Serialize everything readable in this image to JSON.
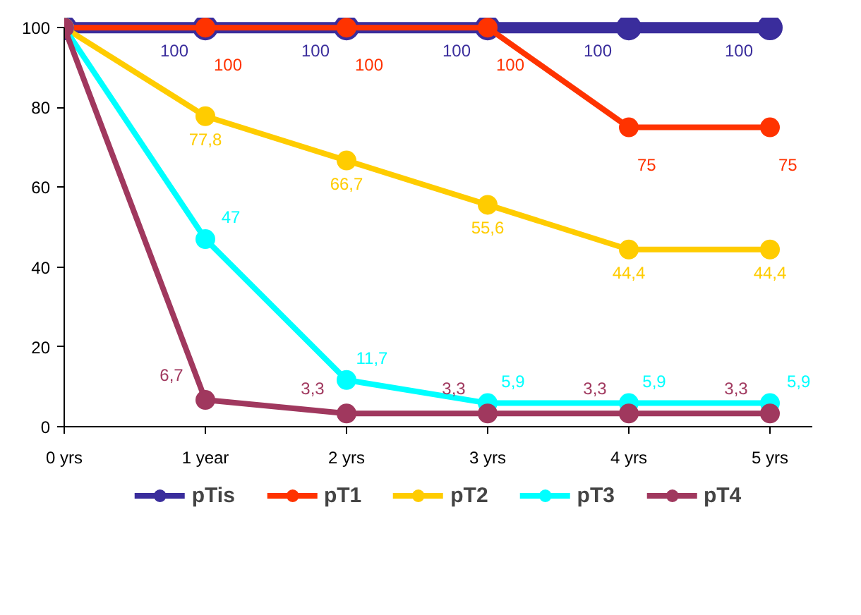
{
  "chart_data": {
    "type": "line",
    "categories": [
      "0 yrs",
      "1 year",
      "2 yrs",
      "3 yrs",
      "4 yrs",
      "5 yrs"
    ],
    "ylim": [
      0,
      100
    ],
    "yticks": [
      0,
      20,
      40,
      60,
      80,
      100
    ],
    "grid": false,
    "legend": "bottom",
    "marker": "circle",
    "line_style": "solid",
    "series": [
      {
        "name": "pTis",
        "color": "#3a2d9c",
        "values": [
          100,
          100,
          100,
          100,
          100,
          100
        ],
        "value_labels": [
          null,
          "100",
          "100",
          "100",
          "100",
          "100"
        ]
      },
      {
        "name": "pT1",
        "color": "#ff3300",
        "values": [
          100,
          100,
          100,
          100,
          75,
          75
        ],
        "value_labels": [
          null,
          "100",
          "100",
          "100",
          "75",
          "75"
        ]
      },
      {
        "name": "pT2",
        "color": "#ffcc00",
        "values": [
          100,
          77.8,
          66.7,
          55.6,
          44.4,
          44.4
        ],
        "value_labels": [
          null,
          "77,8",
          "66,7",
          "55,6",
          "44,4",
          "44,4"
        ]
      },
      {
        "name": "pT3",
        "color": "#00ffff",
        "values": [
          100,
          47,
          11.7,
          5.9,
          5.9,
          5.9
        ],
        "value_labels": [
          null,
          "47",
          "11,7",
          "5,9",
          "5,9",
          "5,9"
        ]
      },
      {
        "name": "pT4",
        "color": "#a0385e",
        "values": [
          100,
          6.7,
          3.3,
          3.3,
          3.3,
          3.3
        ],
        "value_labels": [
          null,
          "6,7",
          "3,3",
          "3,3",
          "3,3",
          "3,3"
        ]
      }
    ]
  }
}
